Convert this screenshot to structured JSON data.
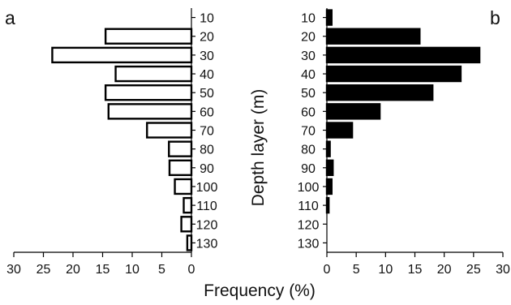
{
  "chart_data": [
    {
      "type": "bar",
      "orientation": "horizontal",
      "x_direction": "reversed",
      "panel_label": "a",
      "categories": [
        "10",
        "20",
        "30",
        "40",
        "50",
        "60",
        "70",
        "80",
        "90",
        "100",
        "110",
        "120",
        "130"
      ],
      "values": [
        0,
        14.5,
        23.5,
        12.8,
        14.5,
        14.0,
        7.5,
        3.8,
        3.7,
        2.8,
        1.3,
        1.7,
        0.7
      ],
      "xlim": [
        0,
        30
      ],
      "xticks": [
        "30",
        "25",
        "20",
        "15",
        "10",
        "5",
        "0"
      ],
      "bar_fill": "#ffffff",
      "bar_stroke": "#000000"
    },
    {
      "type": "bar",
      "orientation": "horizontal",
      "panel_label": "b",
      "categories": [
        "10",
        "20",
        "30",
        "40",
        "50",
        "60",
        "70",
        "80",
        "90",
        "100",
        "110",
        "120",
        "130"
      ],
      "values": [
        0.8,
        15.8,
        26.0,
        22.8,
        18.0,
        9.0,
        4.3,
        0.5,
        1.0,
        0.8,
        0.3,
        0,
        0
      ],
      "xlim": [
        0,
        30
      ],
      "xticks": [
        "0",
        "5",
        "10",
        "15",
        "20",
        "25",
        "30"
      ],
      "bar_fill": "#000000",
      "bar_stroke": "#000000"
    }
  ],
  "axes": {
    "xlabel": "Frequency (%)",
    "ylabel": "Depth layer (m)"
  }
}
